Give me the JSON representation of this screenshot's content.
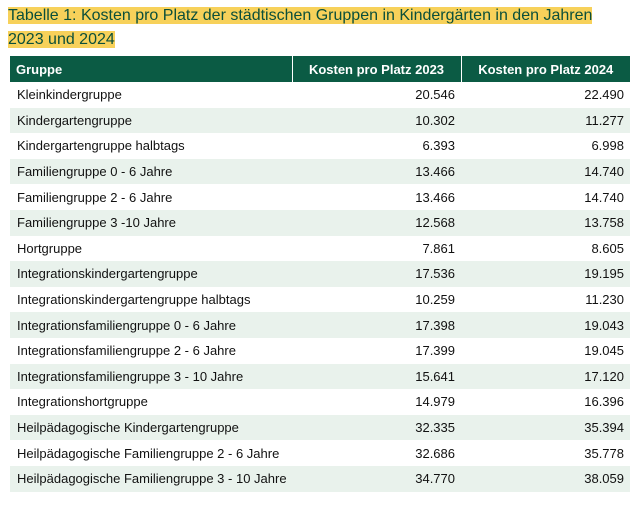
{
  "caption": "Tabelle 1: Kosten pro Platz der städtischen Gruppen in Kindergärten in den Jahren 2023 und 2024",
  "colors": {
    "header_bg": "#0b5b44",
    "header_text": "#ffffff",
    "caption_highlight": "#f7d15a",
    "caption_text": "#0b4f3a",
    "stripe": "#e9f2ec"
  },
  "table": {
    "headers": [
      "Gruppe",
      "Kosten pro Platz 2023",
      "Kosten pro Platz 2024"
    ],
    "rows": [
      [
        "Kleinkindergruppe",
        "20.546",
        "22.490"
      ],
      [
        "Kindergartengruppe",
        "10.302",
        "11.277"
      ],
      [
        "Kindergartengruppe halbtags",
        "6.393",
        "6.998"
      ],
      [
        "Familiengruppe 0 - 6 Jahre",
        "13.466",
        "14.740"
      ],
      [
        "Familiengruppe 2 - 6 Jahre",
        "13.466",
        "14.740"
      ],
      [
        "Familiengruppe 3 -10 Jahre",
        "12.568",
        "13.758"
      ],
      [
        "Hortgruppe",
        "7.861",
        "8.605"
      ],
      [
        "Integrationskindergartengruppe",
        "17.536",
        "19.195"
      ],
      [
        "Integrationskindergartengruppe halbtags",
        "10.259",
        "11.230"
      ],
      [
        "Integrationsfamiliengruppe 0 - 6 Jahre",
        "17.398",
        "19.043"
      ],
      [
        "Integrationsfamiliengruppe 2 - 6 Jahre",
        "17.399",
        "19.045"
      ],
      [
        "Integrationsfamiliengruppe 3 - 10 Jahre",
        "15.641",
        "17.120"
      ],
      [
        "Integrationshortgruppe",
        "14.979",
        "16.396"
      ],
      [
        "Heilpädagogische Kindergartengruppe",
        "32.335",
        "35.394"
      ],
      [
        "Heilpädagogische Familiengruppe 2 - 6 Jahre",
        "32.686",
        "35.778"
      ],
      [
        "Heilpädagogische Familiengruppe 3 - 10 Jahre",
        "34.770",
        "38.059"
      ]
    ]
  }
}
